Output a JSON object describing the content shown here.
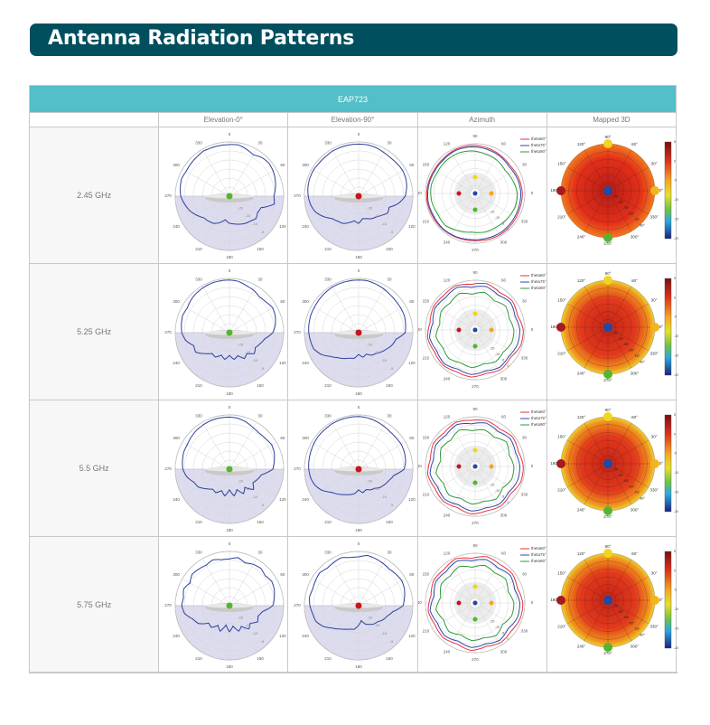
{
  "title": "Antenna Radiation Patterns",
  "table": {
    "model": "EAP723",
    "columns": [
      "",
      "Elevation-0°",
      "Elevation-90°",
      "Azimuth",
      "Mapped 3D"
    ],
    "rows": [
      {
        "freq": "2.45 GHz"
      },
      {
        "freq": "5.25 GHz"
      },
      {
        "freq": "5.5 GHz"
      },
      {
        "freq": "5.75 GHz"
      }
    ]
  },
  "chart_data": {
    "type": "polar",
    "elevation": {
      "angle_labels": [
        "0",
        "30",
        "60",
        "90",
        "120",
        "150",
        "180",
        "210",
        "240",
        "270",
        "300",
        "330"
      ],
      "radial_labels": [
        "-20",
        "-15",
        "-10",
        "-5"
      ],
      "line_color": "#2b3f9e",
      "shade_color": "#dcdcee",
      "dot_colors": {
        "elevation_0": "#55b52e",
        "elevation_90": "#c8141e"
      }
    },
    "azimuth": {
      "angle_labels": [
        "0",
        "30",
        "60",
        "90",
        "120",
        "150",
        "180",
        "210",
        "240",
        "270",
        "300",
        "330"
      ],
      "radial_labels": [
        "-15",
        "-10",
        "-5",
        "0"
      ],
      "legend": [
        {
          "name": "theta60°",
          "color": "#e8323c"
        },
        {
          "name": "theta75°",
          "color": "#2b4aa8"
        },
        {
          "name": "theta90°",
          "color": "#2e9a3c"
        }
      ]
    },
    "mapped3d": {
      "angle_labels": [
        "0°",
        "30°",
        "60°",
        "90°",
        "120°",
        "150°",
        "180°",
        "210°",
        "240°",
        "270°",
        "300°",
        "330°"
      ],
      "radial_labels": [
        "15°",
        "30°",
        "45°",
        "60°",
        "75°",
        "90°"
      ],
      "colorbar_ticks": [
        "5",
        "0",
        "-5",
        "-10",
        "-15",
        "-20"
      ],
      "colorbar_range": [
        -20,
        5
      ]
    },
    "series": [
      {
        "freq": "2.45 GHz",
        "elev0": [
          0.95,
          0.96,
          0.92,
          0.88,
          0.93,
          0.95,
          0.93,
          0.9,
          0.86,
          0.82,
          0.84,
          0.62,
          0.6,
          0.64,
          0.6,
          0.58,
          0.55,
          0.52,
          0.5,
          0.44,
          0.52,
          0.58,
          0.6,
          0.62,
          0.7,
          0.78,
          0.84,
          0.9,
          0.92,
          0.94,
          0.92,
          0.93,
          0.94,
          0.96,
          0.95,
          0.95
        ],
        "elev90": [
          0.96,
          0.96,
          0.95,
          0.93,
          0.92,
          0.93,
          0.94,
          0.93,
          0.9,
          0.86,
          0.75,
          0.6,
          0.62,
          0.55,
          0.5,
          0.48,
          0.44,
          0.42,
          0.5,
          0.46,
          0.52,
          0.58,
          0.6,
          0.64,
          0.75,
          0.85,
          0.9,
          0.93,
          0.95,
          0.96,
          0.96,
          0.95,
          0.95,
          0.96,
          0.96,
          0.96
        ],
        "az60": [
          0.95,
          0.93,
          0.9,
          0.92,
          0.95,
          0.97,
          0.97,
          0.95,
          0.95,
          0.97,
          0.98,
          0.97,
          0.97,
          0.96,
          0.95,
          0.96,
          0.97,
          0.96,
          0.95
        ],
        "az75": [
          0.92,
          0.9,
          0.87,
          0.9,
          0.92,
          0.94,
          0.95,
          0.93,
          0.93,
          0.95,
          0.96,
          0.95,
          0.96,
          0.95,
          0.93,
          0.93,
          0.94,
          0.93,
          0.92
        ],
        "az90": [
          0.85,
          0.8,
          0.76,
          0.8,
          0.82,
          0.86,
          0.88,
          0.88,
          0.87,
          0.9,
          0.89,
          0.86,
          0.88,
          0.82,
          0.78,
          0.8,
          0.8,
          0.82,
          0.85
        ]
      },
      {
        "freq": "5.25 GHz",
        "elev0": [
          0.97,
          0.96,
          0.92,
          0.9,
          0.86,
          0.88,
          0.92,
          0.9,
          0.86,
          0.8,
          0.66,
          0.6,
          0.55,
          0.6,
          0.5,
          0.55,
          0.45,
          0.5,
          0.42,
          0.5,
          0.44,
          0.52,
          0.5,
          0.6,
          0.72,
          0.7,
          0.82,
          0.88,
          0.9,
          0.92,
          0.9,
          0.93,
          0.95,
          0.96,
          0.97,
          0.97
        ],
        "elev90": [
          0.97,
          0.97,
          0.95,
          0.93,
          0.91,
          0.9,
          0.9,
          0.9,
          0.88,
          0.86,
          0.7,
          0.66,
          0.6,
          0.55,
          0.5,
          0.48,
          0.42,
          0.46,
          0.4,
          0.48,
          0.5,
          0.55,
          0.6,
          0.68,
          0.8,
          0.88,
          0.9,
          0.92,
          0.93,
          0.94,
          0.94,
          0.95,
          0.96,
          0.97,
          0.97,
          0.97
        ],
        "az60": [
          0.97,
          0.9,
          0.95,
          0.9,
          0.96,
          0.92,
          0.97,
          0.94,
          0.96,
          0.92,
          0.97,
          0.93,
          0.96,
          0.92,
          0.95,
          0.9,
          0.95,
          0.9,
          0.97
        ],
        "az75": [
          0.9,
          0.85,
          0.9,
          0.84,
          0.9,
          0.86,
          0.93,
          0.88,
          0.92,
          0.86,
          0.93,
          0.88,
          0.92,
          0.86,
          0.9,
          0.85,
          0.9,
          0.86,
          0.9
        ],
        "az90": [
          0.78,
          0.72,
          0.78,
          0.7,
          0.78,
          0.72,
          0.8,
          0.74,
          0.78,
          0.72,
          0.8,
          0.74,
          0.78,
          0.72,
          0.76,
          0.7,
          0.76,
          0.72,
          0.78
        ]
      },
      {
        "freq": "5.5 GHz",
        "elev0": [
          0.96,
          0.95,
          0.92,
          0.88,
          0.86,
          0.87,
          0.9,
          0.88,
          0.84,
          0.8,
          0.6,
          0.55,
          0.5,
          0.58,
          0.44,
          0.52,
          0.4,
          0.5,
          0.38,
          0.5,
          0.42,
          0.5,
          0.48,
          0.56,
          0.66,
          0.7,
          0.8,
          0.86,
          0.88,
          0.9,
          0.9,
          0.92,
          0.94,
          0.95,
          0.96,
          0.96
        ],
        "elev90": [
          0.97,
          0.96,
          0.94,
          0.92,
          0.9,
          0.9,
          0.91,
          0.9,
          0.88,
          0.84,
          0.66,
          0.6,
          0.56,
          0.52,
          0.46,
          0.44,
          0.4,
          0.44,
          0.38,
          0.46,
          0.5,
          0.54,
          0.6,
          0.66,
          0.78,
          0.86,
          0.9,
          0.92,
          0.93,
          0.94,
          0.95,
          0.96,
          0.96,
          0.97,
          0.97,
          0.97
        ],
        "az60": [
          0.97,
          0.92,
          0.96,
          0.9,
          0.95,
          0.93,
          0.97,
          0.92,
          0.96,
          0.91,
          0.97,
          0.92,
          0.95,
          0.9,
          0.96,
          0.92,
          0.95,
          0.9,
          0.97
        ],
        "az75": [
          0.9,
          0.86,
          0.9,
          0.84,
          0.9,
          0.86,
          0.92,
          0.86,
          0.9,
          0.85,
          0.92,
          0.86,
          0.9,
          0.84,
          0.9,
          0.86,
          0.9,
          0.85,
          0.9
        ],
        "az90": [
          0.78,
          0.72,
          0.8,
          0.7,
          0.76,
          0.72,
          0.8,
          0.72,
          0.78,
          0.7,
          0.8,
          0.72,
          0.78,
          0.7,
          0.76,
          0.72,
          0.78,
          0.7,
          0.78
        ]
      },
      {
        "freq": "5.75 GHz",
        "elev0": [
          0.86,
          0.9,
          0.84,
          0.88,
          0.9,
          0.86,
          0.9,
          0.88,
          0.84,
          0.8,
          0.62,
          0.56,
          0.6,
          0.5,
          0.56,
          0.44,
          0.5,
          0.38,
          0.48,
          0.36,
          0.5,
          0.42,
          0.52,
          0.5,
          0.66,
          0.72,
          0.84,
          0.88,
          0.86,
          0.9,
          0.84,
          0.9,
          0.88,
          0.86,
          0.9,
          0.86
        ],
        "elev90": [
          0.9,
          0.94,
          0.92,
          0.9,
          0.88,
          0.9,
          0.92,
          0.9,
          0.86,
          0.82,
          0.64,
          0.56,
          0.52,
          0.46,
          0.44,
          0.4,
          0.36,
          0.28,
          0.36,
          0.44,
          0.46,
          0.5,
          0.56,
          0.64,
          0.76,
          0.84,
          0.86,
          0.9,
          0.92,
          0.9,
          0.92,
          0.94,
          0.9,
          0.92,
          0.94,
          0.9
        ],
        "az60": [
          0.96,
          0.9,
          0.95,
          0.92,
          0.96,
          0.9,
          0.97,
          0.92,
          0.95,
          0.9,
          0.96,
          0.92,
          0.95,
          0.9,
          0.96,
          0.9,
          0.95,
          0.92,
          0.96
        ],
        "az75": [
          0.9,
          0.84,
          0.9,
          0.84,
          0.9,
          0.85,
          0.92,
          0.86,
          0.9,
          0.84,
          0.92,
          0.86,
          0.9,
          0.84,
          0.9,
          0.85,
          0.9,
          0.84,
          0.9
        ],
        "az90": [
          0.78,
          0.7,
          0.78,
          0.72,
          0.78,
          0.72,
          0.8,
          0.74,
          0.78,
          0.7,
          0.8,
          0.72,
          0.78,
          0.7,
          0.76,
          0.72,
          0.78,
          0.7,
          0.78
        ]
      }
    ]
  }
}
